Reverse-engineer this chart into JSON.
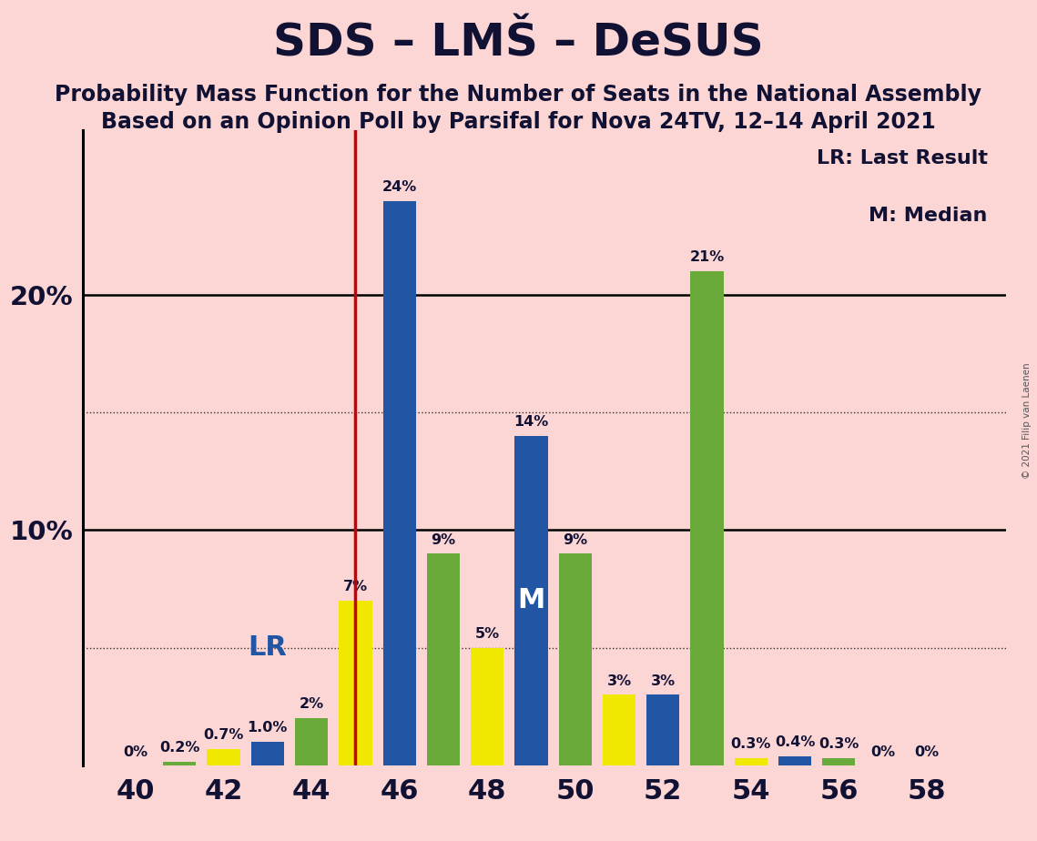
{
  "title": "SDS – LMŠ – DeSUS",
  "subtitle1": "Probability Mass Function for the Number of Seats in the National Assembly",
  "subtitle2": "Based on an Opinion Poll by Parsifal for Nova 24TV, 12–14 April 2021",
  "copyright": "© 2021 Filip van Laenen",
  "background_color": "#fcd5d5",
  "blue_color": "#2255a4",
  "yellow_color": "#f0e800",
  "green_color": "#6aaa3a",
  "red_color": "#cc0000",
  "text_color": "#111133",
  "x_ticks": [
    40,
    42,
    44,
    46,
    48,
    50,
    52,
    54,
    56,
    58
  ],
  "xlim": [
    38.8,
    59.8
  ],
  "ylim": [
    0,
    27
  ],
  "LR_line_x": 45.0,
  "bar_width": 0.75,
  "bars": [
    {
      "seat": 40,
      "color": "green",
      "value": 0.0,
      "label": "0%",
      "has_M": false
    },
    {
      "seat": 41,
      "color": "green",
      "value": 0.15,
      "label": "0.2%",
      "has_M": false
    },
    {
      "seat": 42,
      "color": "yellow",
      "value": 0.7,
      "label": "0.7%",
      "has_M": false
    },
    {
      "seat": 43,
      "color": "blue",
      "value": 1.0,
      "label": "1.0%",
      "has_M": false
    },
    {
      "seat": 44,
      "color": "green",
      "value": 2.0,
      "label": "2%",
      "has_M": false
    },
    {
      "seat": 45,
      "color": "yellow",
      "value": 7.0,
      "label": "7%",
      "has_M": false
    },
    {
      "seat": 46,
      "color": "blue",
      "value": 24.0,
      "label": "24%",
      "has_M": false
    },
    {
      "seat": 47,
      "color": "green",
      "value": 9.0,
      "label": "9%",
      "has_M": false
    },
    {
      "seat": 48,
      "color": "yellow",
      "value": 5.0,
      "label": "5%",
      "has_M": false
    },
    {
      "seat": 49,
      "color": "blue",
      "value": 14.0,
      "label": "14%",
      "has_M": true
    },
    {
      "seat": 50,
      "color": "green",
      "value": 9.0,
      "label": "9%",
      "has_M": false
    },
    {
      "seat": 51,
      "color": "yellow",
      "value": 3.0,
      "label": "3%",
      "has_M": false
    },
    {
      "seat": 52,
      "color": "blue",
      "value": 3.0,
      "label": "3%",
      "has_M": false
    },
    {
      "seat": 53,
      "color": "green",
      "value": 21.0,
      "label": "21%",
      "has_M": false
    },
    {
      "seat": 54,
      "color": "yellow",
      "value": 0.3,
      "label": "0.3%",
      "has_M": false
    },
    {
      "seat": 55,
      "color": "blue",
      "value": 0.4,
      "label": "0.4%",
      "has_M": false
    },
    {
      "seat": 56,
      "color": "green",
      "value": 0.3,
      "label": "0.3%",
      "has_M": false
    },
    {
      "seat": 57,
      "color": "blue",
      "value": 0.0,
      "label": "0%",
      "has_M": false
    },
    {
      "seat": 58,
      "color": "green",
      "value": 0.0,
      "label": "0%",
      "has_M": false
    }
  ],
  "LR_text": "LR",
  "LR_x": 43.0,
  "LR_y": 5.0,
  "legend_lr_text": "LR: Last Result",
  "legend_m_text": "M: Median",
  "grid_solid": [
    10.0,
    20.0
  ],
  "grid_dotted": [
    5.0,
    15.0
  ],
  "title_fontsize": 36,
  "subtitle_fontsize": 17,
  "tick_fontsize": 22,
  "ytick_fontsize": 21,
  "label_fontsize": 11.5,
  "legend_fontsize": 16,
  "LR_ann_fontsize": 22,
  "M_ann_fontsize": 22
}
